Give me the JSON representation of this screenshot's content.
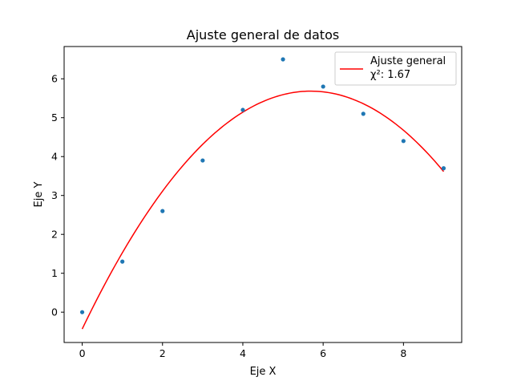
{
  "chart_data": {
    "type": "scatter",
    "title": "Ajuste general de datos",
    "xlabel": "Eje X",
    "ylabel": "Eje Y",
    "xlim": [
      -0.45,
      9.45
    ],
    "ylim": [
      -0.78,
      6.83
    ],
    "xticks": [
      0,
      2,
      4,
      6,
      8
    ],
    "yticks": [
      0,
      1,
      2,
      3,
      4,
      5,
      6
    ],
    "grid": false,
    "legend_position": "top-right",
    "series": [
      {
        "kind": "points",
        "color": "#1f77b4",
        "x": [
          0,
          1,
          2,
          3,
          4,
          5,
          6,
          7,
          8,
          9
        ],
        "y": [
          0.0,
          1.3,
          2.6,
          3.9,
          5.2,
          6.5,
          5.8,
          5.1,
          4.4,
          3.7
        ]
      },
      {
        "kind": "fit",
        "name": "Ajuste general",
        "annotation": "χ²: 1.67",
        "color": "#ff0000",
        "model": "quadratic",
        "coefficients": {
          "a": -0.1888,
          "b": 2.1491,
          "c": -0.4331
        }
      }
    ]
  }
}
